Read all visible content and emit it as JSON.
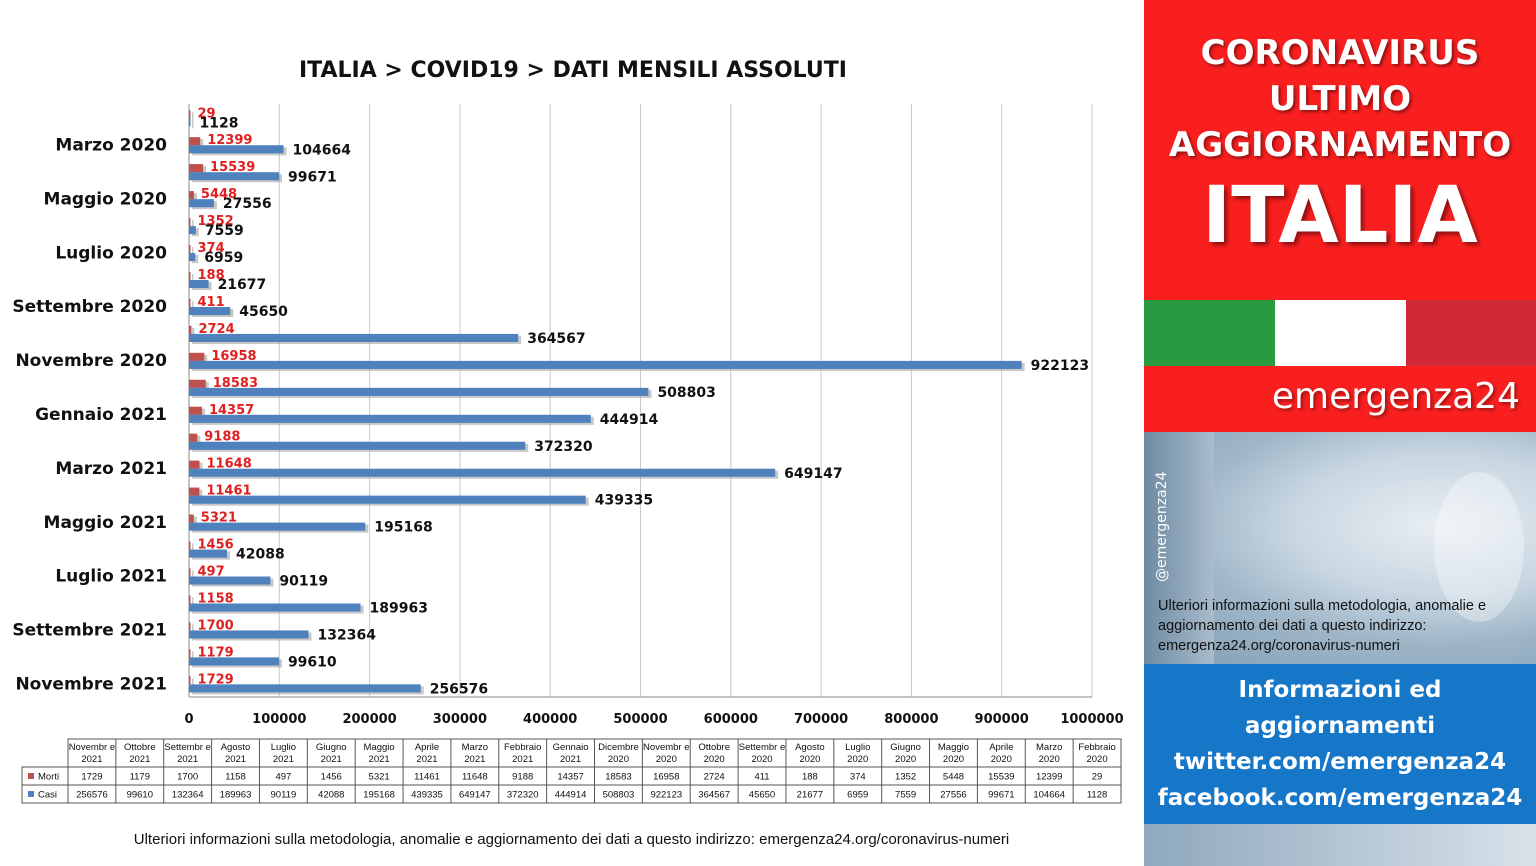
{
  "chart_data": {
    "type": "bar",
    "orientation": "horizontal",
    "title": "ITALIA >  COVID19 > DATI MENSILI  ASSOLUTI",
    "categories": [
      "Novembre 2021",
      "Ottobre 2021",
      "Settembre 2021",
      "Agosto 2021",
      "Luglio 2021",
      "Giugno 2021",
      "Maggio 2021",
      "Aprile 2021",
      "Marzo 2021",
      "Febbraio 2021",
      "Gennaio 2021",
      "Dicembre 2020",
      "Novembre 2020",
      "Ottobre 2020",
      "Settembre 2020",
      "Agosto 2020",
      "Luglio 2020",
      "Giugno 2020",
      "Maggio 2020",
      "Aprile 2020",
      "Marzo 2020",
      "Febbraio 2020"
    ],
    "axis_category_labels": [
      "Novembre 2021",
      "Settembre 2021",
      "Luglio 2021",
      "Maggio 2021",
      "Marzo 2021",
      "Gennaio 2021",
      "Novembre 2020",
      "Settembre 2020",
      "Luglio 2020",
      "Maggio 2020",
      "Marzo 2020"
    ],
    "series": [
      {
        "name": "Morti",
        "color": "#c0504d",
        "values": [
          1729,
          1179,
          1700,
          1158,
          497,
          1456,
          5321,
          11461,
          11648,
          9188,
          14357,
          18583,
          16958,
          2724,
          411,
          188,
          374,
          1352,
          5448,
          15539,
          12399,
          29
        ]
      },
      {
        "name": "Casi",
        "color": "#4f81bd",
        "values": [
          256576,
          99610,
          132364,
          189963,
          90119,
          42088,
          195168,
          439335,
          649147,
          372320,
          444914,
          508803,
          922123,
          364567,
          45650,
          21677,
          6959,
          7559,
          27556,
          99671,
          104664,
          1128
        ]
      }
    ],
    "xlim": [
      0,
      1000000
    ],
    "xticks": [
      0,
      100000,
      200000,
      300000,
      400000,
      500000,
      600000,
      700000,
      800000,
      900000,
      1000000
    ],
    "grid": true,
    "data_table": {
      "headers": [
        "Novembr e 2021",
        "Ottobre 2021",
        "Settembr e 2021",
        "Agosto 2021",
        "Luglio 2021",
        "Giugno 2021",
        "Maggio 2021",
        "Aprile 2021",
        "Marzo 2021",
        "Febbraio 2021",
        "Gennaio 2021",
        "Dicembre 2020",
        "Novembr e 2020",
        "Ottobre 2020",
        "Settembr e 2020",
        "Agosto 2020",
        "Luglio 2020",
        "Giugno 2020",
        "Maggio 2020",
        "Aprile 2020",
        "Marzo 2020",
        "Febbraio 2020"
      ],
      "row_labels": [
        "Morti",
        "Casi"
      ]
    }
  },
  "footnote": "Ulteriori informazioni sulla metodologia, anomalie e aggiornamento dei dati a questo indirizzo: emergenza24.org/coronavirus-numeri",
  "panel": {
    "line1": "CORONAVIRUS",
    "line2": "ULTIMO",
    "line3": "AGGIORNAMENTO",
    "country": "ITALIA",
    "brand": "emergenza24",
    "handle": "@emergenza24",
    "info_text": "Ulteriori informazioni sulla metodologia, anomalie e aggiornamento dei dati a questo indirizzo: emergenza24.org/coronavirus-numeri",
    "blue_line1": "Informazioni ed",
    "blue_line2": "aggiornamenti",
    "blue_line3": "twitter.com/emergenza24",
    "blue_line4": "facebook.com/emergenza24",
    "colors": {
      "banner": "#fa1f1f",
      "flag_green": "#2a9a40",
      "flag_white": "#ffffff",
      "flag_red": "#cf2a35",
      "blue_box": "#1676c8"
    }
  }
}
